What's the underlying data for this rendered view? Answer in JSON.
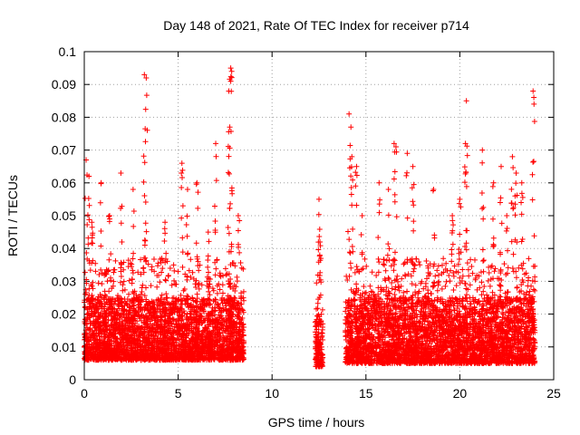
{
  "chart_data": {
    "type": "scatter",
    "title": "Day 148 of 2021, Rate Of TEC Index for receiver p714",
    "xlabel": "GPS time / hours",
    "ylabel": "ROTI / TECUs",
    "xlim": [
      0,
      25
    ],
    "ylim": [
      0,
      0.1
    ],
    "xticks": [
      0,
      5,
      10,
      15,
      20,
      25
    ],
    "xtick_labels": [
      "0",
      "5",
      "10",
      "15",
      "20",
      "25"
    ],
    "yticks": [
      0,
      0.01,
      0.02,
      0.03,
      0.04,
      0.05,
      0.06,
      0.07,
      0.08,
      0.09,
      0.1
    ],
    "ytick_labels": [
      "0",
      "0.01",
      "0.02",
      "0.03",
      "0.04",
      "0.05",
      "0.06",
      "0.07",
      "0.08",
      "0.09",
      "0.1"
    ],
    "grid": true,
    "marker": "+",
    "color": "#ff0000",
    "series": [
      {
        "name": "p714",
        "segments": [
          {
            "x_start": 0.0,
            "x_end": 8.5,
            "typical_low": 0.006,
            "typical_high": 0.025
          },
          {
            "x_start": 12.3,
            "x_end": 12.7,
            "typical_low": 0.004,
            "typical_high": 0.02
          },
          {
            "x_start": 13.9,
            "x_end": 24.0,
            "typical_low": 0.005,
            "typical_high": 0.025
          }
        ],
        "peaks": [
          {
            "x": 0.1,
            "y": 0.067
          },
          {
            "x": 0.25,
            "y": 0.062
          },
          {
            "x": 0.4,
            "y": 0.048
          },
          {
            "x": 0.9,
            "y": 0.06
          },
          {
            "x": 1.35,
            "y": 0.05
          },
          {
            "x": 1.95,
            "y": 0.063
          },
          {
            "x": 2.6,
            "y": 0.058
          },
          {
            "x": 3.2,
            "y": 0.093
          },
          {
            "x": 3.3,
            "y": 0.092
          },
          {
            "x": 4.3,
            "y": 0.048
          },
          {
            "x": 5.2,
            "y": 0.066
          },
          {
            "x": 5.5,
            "y": 0.058
          },
          {
            "x": 6.0,
            "y": 0.06
          },
          {
            "x": 6.6,
            "y": 0.045
          },
          {
            "x": 7.0,
            "y": 0.072
          },
          {
            "x": 7.7,
            "y": 0.088
          },
          {
            "x": 7.75,
            "y": 0.077
          },
          {
            "x": 7.8,
            "y": 0.095
          },
          {
            "x": 7.85,
            "y": 0.094
          },
          {
            "x": 8.2,
            "y": 0.05
          },
          {
            "x": 12.5,
            "y": 0.055
          },
          {
            "x": 12.55,
            "y": 0.042
          },
          {
            "x": 14.1,
            "y": 0.081
          },
          {
            "x": 14.2,
            "y": 0.077
          },
          {
            "x": 14.25,
            "y": 0.068
          },
          {
            "x": 14.5,
            "y": 0.065
          },
          {
            "x": 14.8,
            "y": 0.05
          },
          {
            "x": 15.7,
            "y": 0.06
          },
          {
            "x": 16.2,
            "y": 0.058
          },
          {
            "x": 16.5,
            "y": 0.072
          },
          {
            "x": 16.6,
            "y": 0.071
          },
          {
            "x": 17.2,
            "y": 0.069
          },
          {
            "x": 17.5,
            "y": 0.065
          },
          {
            "x": 18.6,
            "y": 0.058
          },
          {
            "x": 19.6,
            "y": 0.05
          },
          {
            "x": 20.0,
            "y": 0.055
          },
          {
            "x": 20.3,
            "y": 0.072
          },
          {
            "x": 20.35,
            "y": 0.085
          },
          {
            "x": 21.2,
            "y": 0.07
          },
          {
            "x": 21.8,
            "y": 0.06
          },
          {
            "x": 22.2,
            "y": 0.065
          },
          {
            "x": 22.5,
            "y": 0.05
          },
          {
            "x": 22.8,
            "y": 0.068
          },
          {
            "x": 23.0,
            "y": 0.063
          },
          {
            "x": 23.3,
            "y": 0.06
          },
          {
            "x": 23.9,
            "y": 0.088
          },
          {
            "x": 23.95,
            "y": 0.084
          }
        ]
      }
    ]
  }
}
